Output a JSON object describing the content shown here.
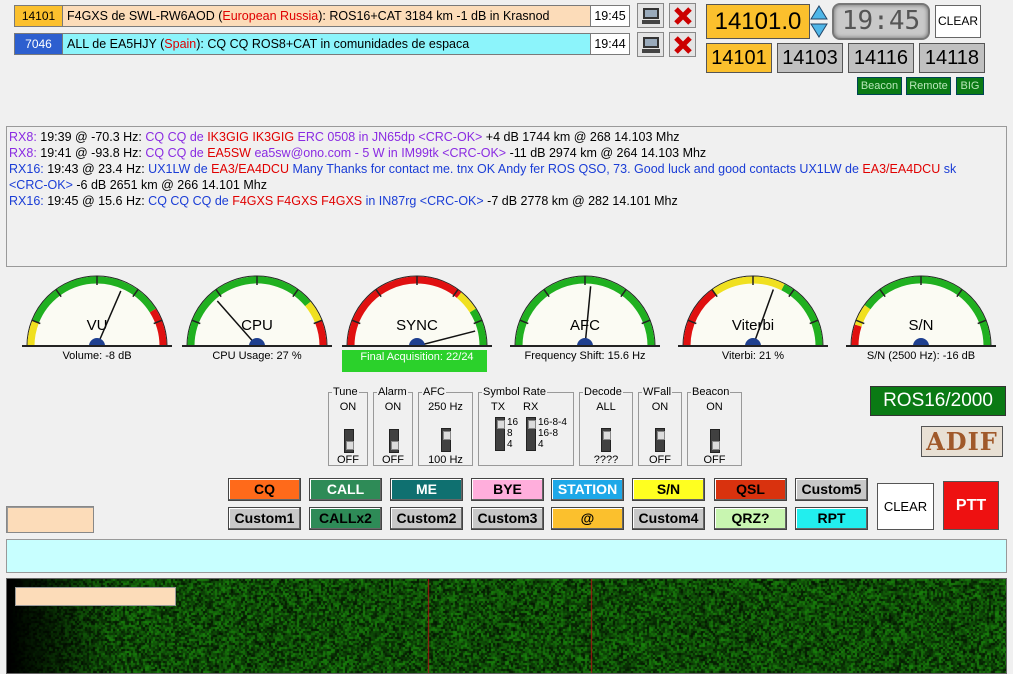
{
  "alerts": [
    {
      "freq": "14101",
      "call_prefix": "F4GXS de SWL-RW6AOD (",
      "country": "European Russia",
      "rest": "): ROS16+CAT 3184 km -1 dB in Krasnod",
      "time": "19:45"
    },
    {
      "freq": "7046",
      "call_prefix": "ALL de EA5HJY (",
      "country": "Spain",
      "rest": "): CQ CQ ROS8+CAT in comunidades de espaca",
      "time": "19:44"
    }
  ],
  "freq_display": "14101.0",
  "clock": "19:45",
  "clear_top_label": "CLEAR",
  "presets": [
    "14101",
    "14103",
    "14116",
    "14118"
  ],
  "small_buttons": [
    "Beacon",
    "Remote",
    "BIG"
  ],
  "log": [
    [
      {
        "t": "RX8:",
        "c": "#8a2be2"
      },
      {
        "t": " 19:39 @ -70.3 Hz: ",
        "c": "#000"
      },
      {
        "t": "CQ  CQ  de  ",
        "c": "#8a2be2"
      },
      {
        "t": "IK3GIG  IK3GIG",
        "c": "#e00000"
      },
      {
        "t": "  ERC 0508 in JN65dp  <CRC-OK>",
        "c": "#8a2be2"
      },
      {
        "t": " +4 dB  1744 km @ 268  14.103 Mhz",
        "c": "#000"
      }
    ],
    [
      {
        "t": "RX8:",
        "c": "#8a2be2"
      },
      {
        "t": " 19:41 @ -93.8 Hz: ",
        "c": "#000"
      },
      {
        "t": "CQ CQ de ",
        "c": "#8a2be2"
      },
      {
        "t": "EA5SW",
        "c": "#e00000"
      },
      {
        "t": " ea5sw@ono.com - 5 W in IM99tk  <CRC-OK>",
        "c": "#8a2be2"
      },
      {
        "t": " -11 dB  2974 km @ 264  14.103 Mhz",
        "c": "#000"
      }
    ],
    [
      {
        "t": "RX16:",
        "c": "#1a3dd6"
      },
      {
        "t": " 19:43 @ 23.4 Hz: ",
        "c": "#000"
      },
      {
        "t": "UX1LW de ",
        "c": "#1a3dd6"
      },
      {
        "t": "EA3/EA4DCU",
        "c": "#e00000"
      },
      {
        "t": " Many Thanks for contact me. tnx OK Andy fer ROS QSO, 73. Good luck and good contacts UX1LW de ",
        "c": "#1a3dd6"
      },
      {
        "t": "EA3/EA4DCU",
        "c": "#e00000"
      },
      {
        "t": " sk",
        "c": "#1a3dd6"
      }
    ],
    [
      {
        "t": "<CRC-OK>",
        "c": "#1a3dd6"
      },
      {
        "t": " -6 dB  2651 km @ 266  14.101 Mhz",
        "c": "#000"
      }
    ],
    [
      {
        "t": "RX16:",
        "c": "#1a3dd6"
      },
      {
        "t": " 19:45 @ 15.6 Hz: ",
        "c": "#000"
      },
      {
        "t": "CQ CQ CQ de ",
        "c": "#1a3dd6"
      },
      {
        "t": "F4GXS F4GXS F4GXS",
        "c": "#e00000"
      },
      {
        "t": " in IN87rg  <CRC-OK>",
        "c": "#1a3dd6"
      },
      {
        "t": " -7 dB  2778 km @ 282  14.101 Mhz",
        "c": "#000"
      }
    ]
  ],
  "meters": [
    {
      "label": "VU",
      "caption": "Volume: -8 dB",
      "needle": 0.63
    },
    {
      "label": "CPU",
      "caption": "CPU Usage: 27 %",
      "needle": 0.27
    },
    {
      "label": "SYNC",
      "caption": "Final Acquisition: 22/24",
      "needle": 0.92
    },
    {
      "label": "AFC",
      "caption": "Frequency Shift: 15.6 Hz",
      "needle": 0.53
    },
    {
      "label": "Viterbi",
      "caption": "Viterbi: 21 %",
      "needle": 0.61
    },
    {
      "label": "S/N",
      "caption": "S/N (2500 Hz): -16 dB",
      "needle": 0.0
    }
  ],
  "controls": {
    "tune": {
      "title": "Tune",
      "top": "ON",
      "bottom": "OFF"
    },
    "alarm": {
      "title": "Alarm",
      "top": "ON",
      "bottom": "OFF"
    },
    "afc": {
      "title": "AFC",
      "top": "250 Hz",
      "bottom": "100 Hz"
    },
    "symbol_rate": {
      "title": "Symbol Rate",
      "tx": "TX",
      "rx": "RX",
      "tx_opts": [
        "16",
        "8",
        "4"
      ],
      "rx_opts": [
        "16-8-4",
        "16-8",
        "4"
      ]
    },
    "decode": {
      "title": "Decode",
      "top": "ALL",
      "bottom": "????"
    },
    "wfall": {
      "title": "WFall",
      "top": "ON",
      "bottom": "OFF"
    },
    "beacon": {
      "title": "Beacon",
      "top": "ON",
      "bottom": "OFF"
    }
  },
  "mode_label": "ROS16/2000",
  "adif_label": "ADIF",
  "macros_row1": [
    "CQ",
    "CALL",
    "ME",
    "BYE",
    "STATION",
    "S/N",
    "QSL",
    "Custom5"
  ],
  "macros_row2": [
    "Custom1",
    "CALLx2",
    "Custom2",
    "Custom3",
    "@",
    "Custom4",
    "QRZ?",
    "RPT"
  ],
  "clear_label": "CLEAR",
  "ptt_label": "PTT",
  "colors": {
    "freq_orange": "#fbc02d",
    "macro_bg": "#c8ffff",
    "ptt": "#ee1111",
    "mode_green": "#0a7a14"
  }
}
